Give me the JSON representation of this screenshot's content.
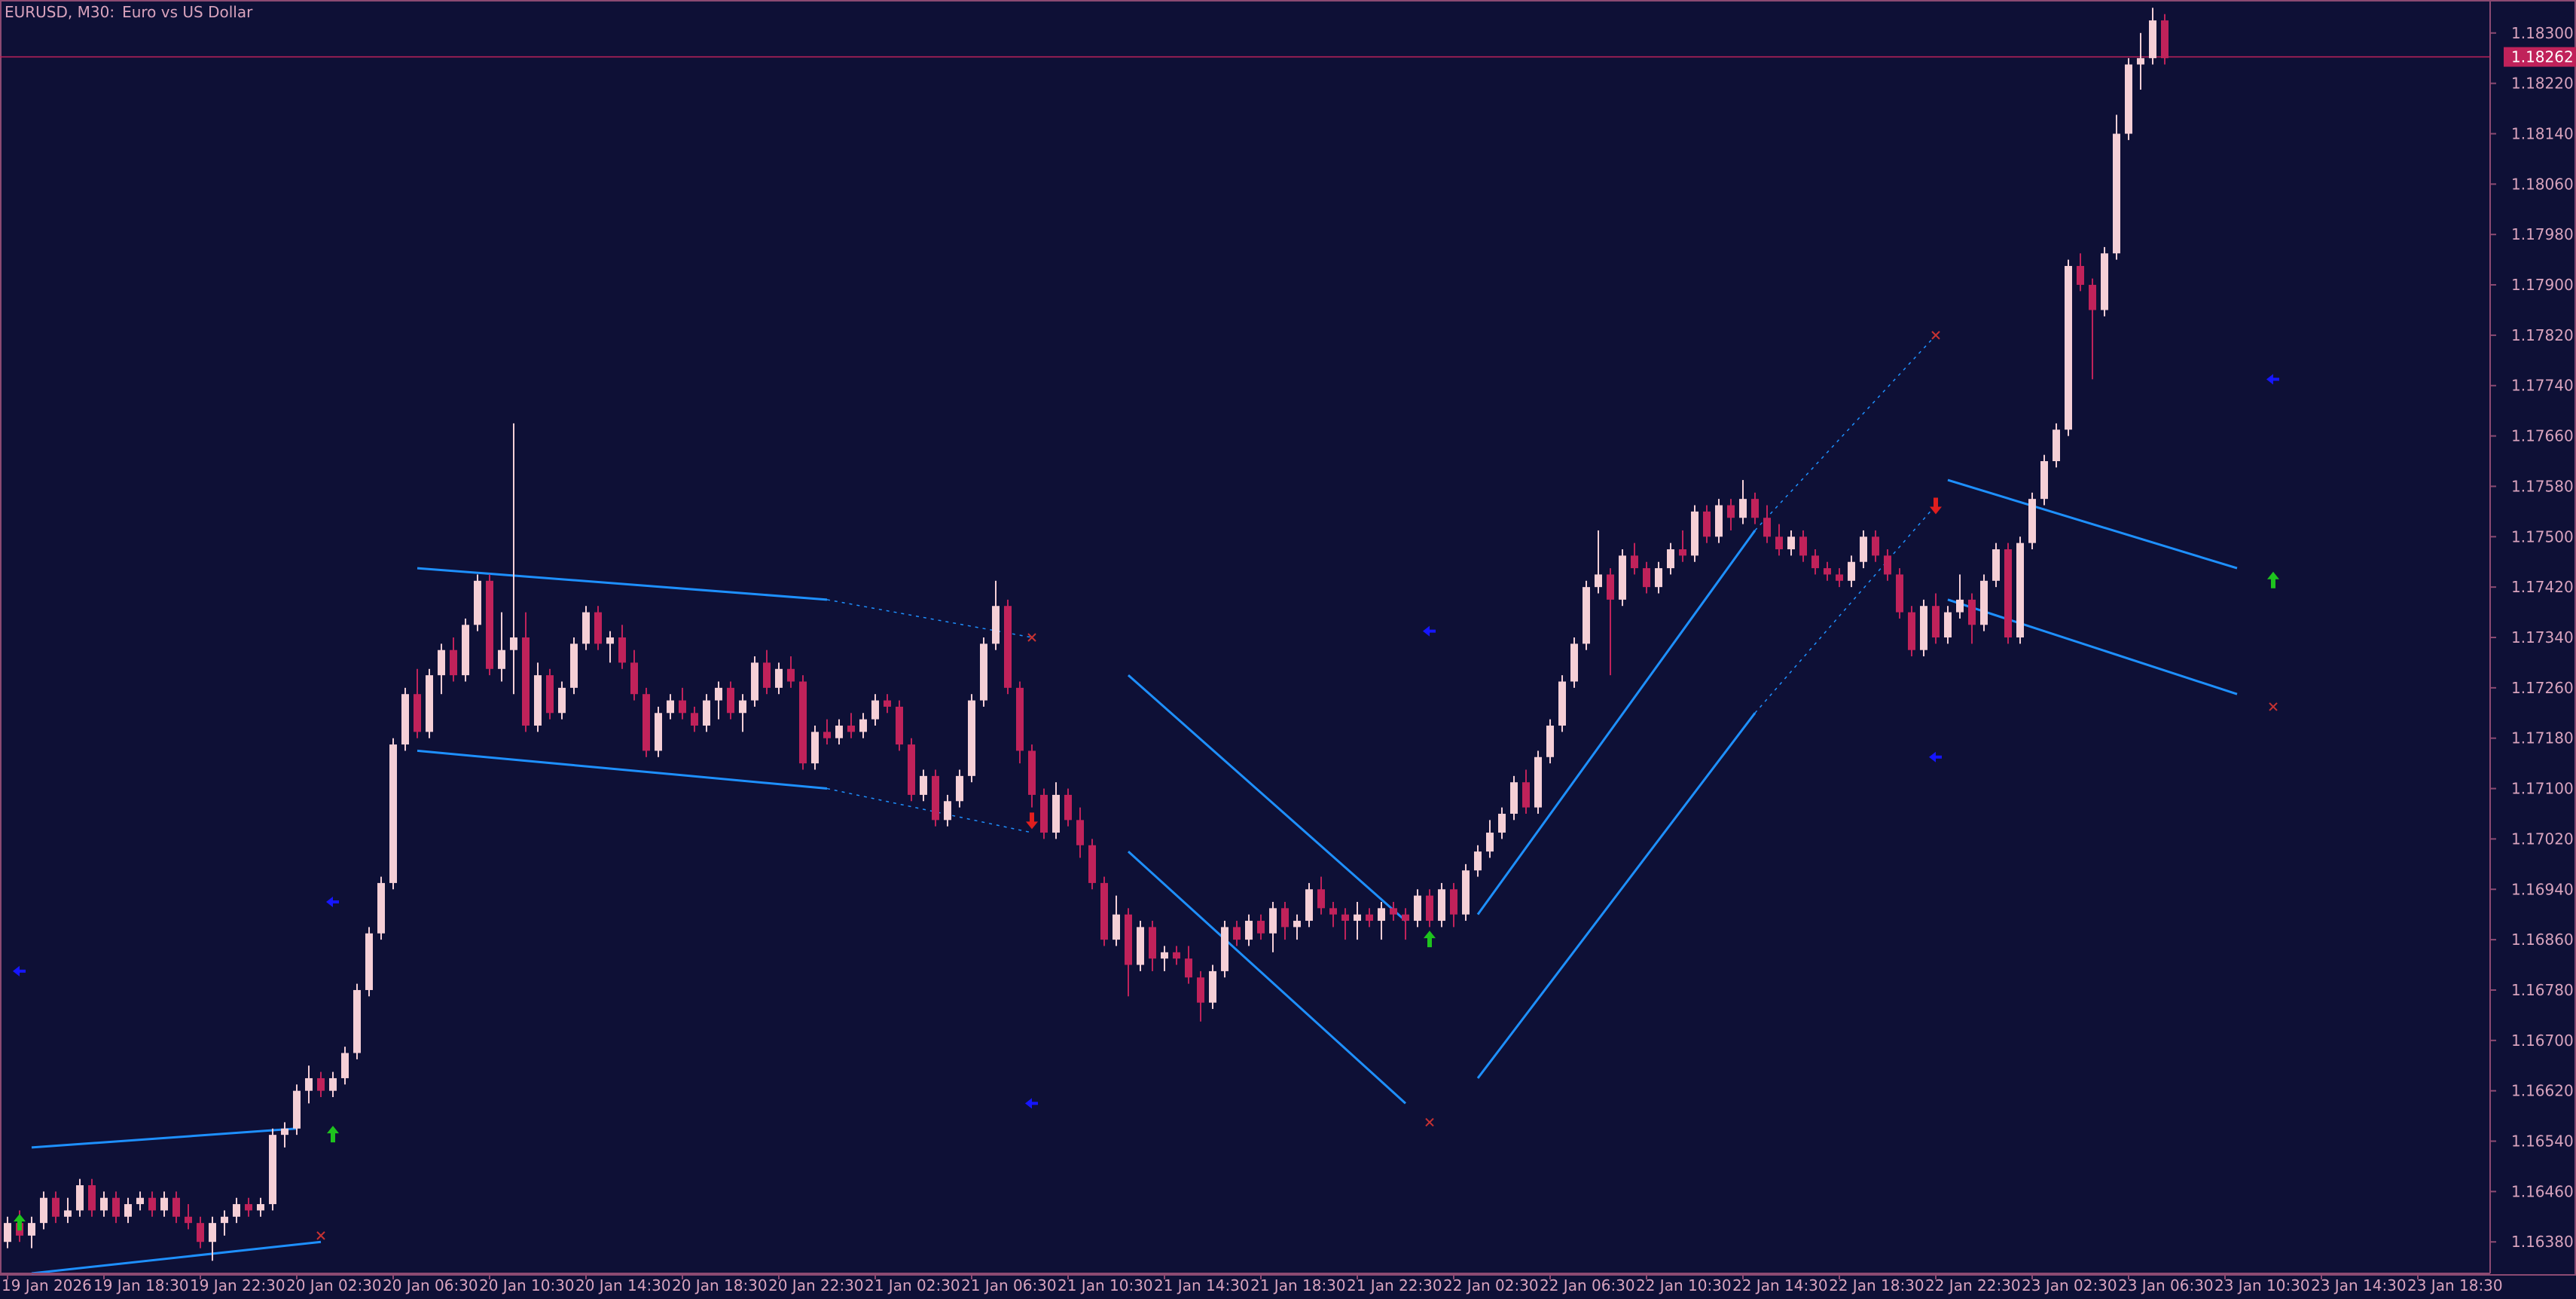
{
  "header": {
    "symbol": "EURUSD, M30:",
    "description": "Euro vs US Dollar"
  },
  "colors": {
    "background": "#0e1036",
    "frame": "#8c4a72",
    "text": "#d9a3bd",
    "bull_candle": "#f5cfd6",
    "bear_candle": "#c0225a",
    "channel_line": "#1e90ff",
    "arrow_up": "#1ec31e",
    "arrow_down": "#e01e1e",
    "marker_blue": "#1616ff",
    "x_marker": "#c83232",
    "price_line": "#c0225a"
  },
  "chart_data": {
    "type": "candlestick",
    "symbol": "EURUSD",
    "timeframe": "M30",
    "current_price": 1.18262,
    "current_price_label": "1.18262",
    "y_ticks": [
      "1.18300",
      "1.18220",
      "1.18140",
      "1.18060",
      "1.17980",
      "1.17900",
      "1.17820",
      "1.17740",
      "1.17660",
      "1.17580",
      "1.17500",
      "1.17420",
      "1.17340",
      "1.17260",
      "1.17180",
      "1.17100",
      "1.17020",
      "1.16940",
      "1.16860",
      "1.16780",
      "1.16700",
      "1.16620",
      "1.16540",
      "1.16460",
      "1.16380"
    ],
    "ylim": [
      1.1633,
      1.1835
    ],
    "x_ticks": [
      "19 Jan 2026",
      "19 Jan 18:30",
      "19 Jan 22:30",
      "20 Jan 02:30",
      "20 Jan 06:30",
      "20 Jan 10:30",
      "20 Jan 14:30",
      "20 Jan 18:30",
      "20 Jan 22:30",
      "21 Jan 02:30",
      "21 Jan 06:30",
      "21 Jan 10:30",
      "21 Jan 14:30",
      "21 Jan 18:30",
      "21 Jan 22:30",
      "22 Jan 02:30",
      "22 Jan 06:30",
      "22 Jan 10:30",
      "22 Jan 14:30",
      "22 Jan 18:30",
      "22 Jan 22:30",
      "23 Jan 02:30",
      "23 Jan 06:30",
      "23 Jan 10:30",
      "23 Jan 14:30",
      "23 Jan 18:30"
    ],
    "bars_per_tick": 8,
    "candles": [
      [
        1.1638,
        1.1642,
        1.1637,
        1.1641
      ],
      [
        1.1641,
        1.1643,
        1.1638,
        1.1639
      ],
      [
        1.1639,
        1.1642,
        1.1637,
        1.1641
      ],
      [
        1.1641,
        1.1646,
        1.164,
        1.1645
      ],
      [
        1.1645,
        1.1646,
        1.1641,
        1.1642
      ],
      [
        1.1642,
        1.1645,
        1.1641,
        1.1643
      ],
      [
        1.1643,
        1.1648,
        1.1642,
        1.1647
      ],
      [
        1.1647,
        1.1648,
        1.1642,
        1.1643
      ],
      [
        1.1643,
        1.1646,
        1.1642,
        1.1645
      ],
      [
        1.1645,
        1.1646,
        1.1641,
        1.1642
      ],
      [
        1.1642,
        1.1645,
        1.1641,
        1.1644
      ],
      [
        1.1644,
        1.1646,
        1.1643,
        1.1645
      ],
      [
        1.1645,
        1.1646,
        1.1642,
        1.1643
      ],
      [
        1.1643,
        1.1646,
        1.1642,
        1.1645
      ],
      [
        1.1645,
        1.1646,
        1.1641,
        1.1642
      ],
      [
        1.1642,
        1.1644,
        1.164,
        1.1641
      ],
      [
        1.1641,
        1.1642,
        1.1637,
        1.1638
      ],
      [
        1.1638,
        1.1642,
        1.1635,
        1.1641
      ],
      [
        1.1641,
        1.1643,
        1.1639,
        1.1642
      ],
      [
        1.1642,
        1.1645,
        1.1641,
        1.1644
      ],
      [
        1.1644,
        1.1645,
        1.1642,
        1.1643
      ],
      [
        1.1643,
        1.1645,
        1.1642,
        1.1644
      ],
      [
        1.1644,
        1.1656,
        1.1643,
        1.1655
      ],
      [
        1.1655,
        1.1657,
        1.1653,
        1.1656
      ],
      [
        1.1656,
        1.1663,
        1.1655,
        1.1662
      ],
      [
        1.1662,
        1.1666,
        1.166,
        1.1664
      ],
      [
        1.1664,
        1.1665,
        1.1661,
        1.1662
      ],
      [
        1.1662,
        1.1665,
        1.1661,
        1.1664
      ],
      [
        1.1664,
        1.1669,
        1.1663,
        1.1668
      ],
      [
        1.1668,
        1.1679,
        1.1667,
        1.1678
      ],
      [
        1.1678,
        1.1688,
        1.1677,
        1.1687
      ],
      [
        1.1687,
        1.1696,
        1.1686,
        1.1695
      ],
      [
        1.1695,
        1.1718,
        1.1694,
        1.1717
      ],
      [
        1.1717,
        1.1726,
        1.1716,
        1.1725
      ],
      [
        1.1725,
        1.1729,
        1.1718,
        1.1719
      ],
      [
        1.1719,
        1.1729,
        1.1718,
        1.1728
      ],
      [
        1.1728,
        1.1733,
        1.1725,
        1.1732
      ],
      [
        1.1732,
        1.1734,
        1.1727,
        1.1728
      ],
      [
        1.1728,
        1.1737,
        1.1727,
        1.1736
      ],
      [
        1.1736,
        1.1744,
        1.1735,
        1.1743
      ],
      [
        1.1743,
        1.1744,
        1.1728,
        1.1729
      ],
      [
        1.1729,
        1.1738,
        1.1727,
        1.1732
      ],
      [
        1.1732,
        1.1768,
        1.1725,
        1.1734
      ],
      [
        1.1734,
        1.1738,
        1.1719,
        1.172
      ],
      [
        1.172,
        1.173,
        1.1719,
        1.1728
      ],
      [
        1.1728,
        1.1729,
        1.1721,
        1.1722
      ],
      [
        1.1722,
        1.1727,
        1.1721,
        1.1726
      ],
      [
        1.1726,
        1.1734,
        1.1725,
        1.1733
      ],
      [
        1.1733,
        1.1739,
        1.1732,
        1.1738
      ],
      [
        1.1738,
        1.1739,
        1.1732,
        1.1733
      ],
      [
        1.1733,
        1.1735,
        1.173,
        1.1734
      ],
      [
        1.1734,
        1.1736,
        1.1729,
        1.173
      ],
      [
        1.173,
        1.1732,
        1.1724,
        1.1725
      ],
      [
        1.1725,
        1.1726,
        1.1715,
        1.1716
      ],
      [
        1.1716,
        1.1723,
        1.1715,
        1.1722
      ],
      [
        1.1722,
        1.1725,
        1.1721,
        1.1724
      ],
      [
        1.1724,
        1.1726,
        1.1721,
        1.1722
      ],
      [
        1.1722,
        1.1723,
        1.1719,
        1.172
      ],
      [
        1.172,
        1.1725,
        1.1719,
        1.1724
      ],
      [
        1.1724,
        1.1727,
        1.1721,
        1.1726
      ],
      [
        1.1726,
        1.1727,
        1.1721,
        1.1722
      ],
      [
        1.1722,
        1.1725,
        1.1719,
        1.1724
      ],
      [
        1.1724,
        1.1731,
        1.1723,
        1.173
      ],
      [
        1.173,
        1.1732,
        1.1725,
        1.1726
      ],
      [
        1.1726,
        1.173,
        1.1725,
        1.1729
      ],
      [
        1.1729,
        1.1731,
        1.1726,
        1.1727
      ],
      [
        1.1727,
        1.1728,
        1.1713,
        1.1714
      ],
      [
        1.1714,
        1.172,
        1.1713,
        1.1719
      ],
      [
        1.1719,
        1.1721,
        1.1717,
        1.1718
      ],
      [
        1.1718,
        1.1721,
        1.1717,
        1.172
      ],
      [
        1.172,
        1.1722,
        1.1718,
        1.1719
      ],
      [
        1.1719,
        1.1722,
        1.1718,
        1.1721
      ],
      [
        1.1721,
        1.1725,
        1.172,
        1.1724
      ],
      [
        1.1724,
        1.1725,
        1.1722,
        1.1723
      ],
      [
        1.1723,
        1.1724,
        1.1716,
        1.1717
      ],
      [
        1.1717,
        1.1718,
        1.1708,
        1.1709
      ],
      [
        1.1709,
        1.1713,
        1.1708,
        1.1712
      ],
      [
        1.1712,
        1.1713,
        1.1704,
        1.1705
      ],
      [
        1.1705,
        1.1709,
        1.1704,
        1.1708
      ],
      [
        1.1708,
        1.1713,
        1.1707,
        1.1712
      ],
      [
        1.1712,
        1.1725,
        1.1711,
        1.1724
      ],
      [
        1.1724,
        1.1734,
        1.1723,
        1.1733
      ],
      [
        1.1733,
        1.1743,
        1.1732,
        1.1739
      ],
      [
        1.1739,
        1.174,
        1.1725,
        1.1726
      ],
      [
        1.1726,
        1.1727,
        1.1714,
        1.1716
      ],
      [
        1.1716,
        1.1717,
        1.1707,
        1.1709
      ],
      [
        1.1709,
        1.171,
        1.1702,
        1.1703
      ],
      [
        1.1703,
        1.1711,
        1.1702,
        1.1709
      ],
      [
        1.1709,
        1.171,
        1.1704,
        1.1705
      ],
      [
        1.1705,
        1.1707,
        1.1699,
        1.1701
      ],
      [
        1.1701,
        1.1702,
        1.1694,
        1.1695
      ],
      [
        1.1695,
        1.1696,
        1.1685,
        1.1686
      ],
      [
        1.1686,
        1.1693,
        1.1685,
        1.169
      ],
      [
        1.169,
        1.1691,
        1.1677,
        1.1682
      ],
      [
        1.1682,
        1.1689,
        1.1681,
        1.1688
      ],
      [
        1.1688,
        1.1689,
        1.1681,
        1.1683
      ],
      [
        1.1683,
        1.1685,
        1.1681,
        1.1684
      ],
      [
        1.1684,
        1.1685,
        1.1682,
        1.1683
      ],
      [
        1.1683,
        1.1685,
        1.1679,
        1.168
      ],
      [
        1.168,
        1.1681,
        1.1673,
        1.1676
      ],
      [
        1.1676,
        1.1682,
        1.1675,
        1.1681
      ],
      [
        1.1681,
        1.1689,
        1.168,
        1.1688
      ],
      [
        1.1688,
        1.1689,
        1.1685,
        1.1686
      ],
      [
        1.1686,
        1.169,
        1.1685,
        1.1689
      ],
      [
        1.1689,
        1.169,
        1.1686,
        1.1687
      ],
      [
        1.1687,
        1.1692,
        1.1684,
        1.1691
      ],
      [
        1.1691,
        1.1692,
        1.1686,
        1.1688
      ],
      [
        1.1688,
        1.169,
        1.1686,
        1.1689
      ],
      [
        1.1689,
        1.1695,
        1.1688,
        1.1694
      ],
      [
        1.1694,
        1.1696,
        1.169,
        1.1691
      ],
      [
        1.1691,
        1.1692,
        1.1688,
        1.169
      ],
      [
        1.169,
        1.1691,
        1.1686,
        1.1689
      ],
      [
        1.1689,
        1.1692,
        1.1686,
        1.169
      ],
      [
        1.169,
        1.1691,
        1.1688,
        1.1689
      ],
      [
        1.1689,
        1.1692,
        1.1686,
        1.1691
      ],
      [
        1.1691,
        1.1692,
        1.1689,
        1.169
      ],
      [
        1.169,
        1.1691,
        1.1686,
        1.1689
      ],
      [
        1.1689,
        1.1694,
        1.1688,
        1.1693
      ],
      [
        1.1693,
        1.1694,
        1.1688,
        1.1689
      ],
      [
        1.1689,
        1.1695,
        1.1688,
        1.1694
      ],
      [
        1.1694,
        1.1695,
        1.1688,
        1.169
      ],
      [
        1.169,
        1.1698,
        1.1689,
        1.1697
      ],
      [
        1.1697,
        1.1701,
        1.1696,
        1.17
      ],
      [
        1.17,
        1.1705,
        1.1699,
        1.1703
      ],
      [
        1.1703,
        1.1707,
        1.1702,
        1.1706
      ],
      [
        1.1706,
        1.1712,
        1.1705,
        1.1711
      ],
      [
        1.1711,
        1.1713,
        1.1706,
        1.1707
      ],
      [
        1.1707,
        1.1716,
        1.1706,
        1.1715
      ],
      [
        1.1715,
        1.1721,
        1.1714,
        1.172
      ],
      [
        1.172,
        1.1728,
        1.1719,
        1.1727
      ],
      [
        1.1727,
        1.1734,
        1.1726,
        1.1733
      ],
      [
        1.1733,
        1.1743,
        1.1732,
        1.1742
      ],
      [
        1.1742,
        1.1751,
        1.1741,
        1.1744
      ],
      [
        1.1744,
        1.1745,
        1.1728,
        1.174
      ],
      [
        1.174,
        1.1748,
        1.1739,
        1.1747
      ],
      [
        1.1747,
        1.1749,
        1.1744,
        1.1745
      ],
      [
        1.1745,
        1.1746,
        1.1741,
        1.1742
      ],
      [
        1.1742,
        1.1746,
        1.1741,
        1.1745
      ],
      [
        1.1745,
        1.1749,
        1.1744,
        1.1748
      ],
      [
        1.1748,
        1.1751,
        1.1746,
        1.1747
      ],
      [
        1.1747,
        1.1755,
        1.1746,
        1.1754
      ],
      [
        1.1754,
        1.1755,
        1.1749,
        1.175
      ],
      [
        1.175,
        1.1756,
        1.1749,
        1.1755
      ],
      [
        1.1755,
        1.1756,
        1.1751,
        1.1753
      ],
      [
        1.1753,
        1.1759,
        1.1752,
        1.1756
      ],
      [
        1.1756,
        1.1757,
        1.1752,
        1.1753
      ],
      [
        1.1753,
        1.1755,
        1.1749,
        1.175
      ],
      [
        1.175,
        1.1752,
        1.1747,
        1.1748
      ],
      [
        1.1748,
        1.1751,
        1.1747,
        1.175
      ],
      [
        1.175,
        1.1751,
        1.1746,
        1.1747
      ],
      [
        1.1747,
        1.1748,
        1.1744,
        1.1745
      ],
      [
        1.1745,
        1.1746,
        1.1743,
        1.1744
      ],
      [
        1.1744,
        1.1745,
        1.1742,
        1.1743
      ],
      [
        1.1743,
        1.1747,
        1.1742,
        1.1746
      ],
      [
        1.1746,
        1.1751,
        1.1745,
        1.175
      ],
      [
        1.175,
        1.1751,
        1.1746,
        1.1747
      ],
      [
        1.1747,
        1.1748,
        1.1743,
        1.1744
      ],
      [
        1.1744,
        1.1745,
        1.1737,
        1.1738
      ],
      [
        1.1738,
        1.1739,
        1.1731,
        1.1732
      ],
      [
        1.1732,
        1.174,
        1.1731,
        1.1739
      ],
      [
        1.1739,
        1.1741,
        1.1733,
        1.1734
      ],
      [
        1.1734,
        1.1739,
        1.1733,
        1.1738
      ],
      [
        1.1738,
        1.1744,
        1.1737,
        1.174
      ],
      [
        1.174,
        1.1741,
        1.1733,
        1.1736
      ],
      [
        1.1736,
        1.1744,
        1.1735,
        1.1743
      ],
      [
        1.1743,
        1.1749,
        1.1742,
        1.1748
      ],
      [
        1.1748,
        1.1749,
        1.1733,
        1.1734
      ],
      [
        1.1734,
        1.175,
        1.1733,
        1.1749
      ],
      [
        1.1749,
        1.1757,
        1.1748,
        1.1756
      ],
      [
        1.1756,
        1.1763,
        1.1755,
        1.1762
      ],
      [
        1.1762,
        1.1768,
        1.1761,
        1.1767
      ],
      [
        1.1767,
        1.1794,
        1.1766,
        1.1793
      ],
      [
        1.1793,
        1.1795,
        1.1789,
        1.179
      ],
      [
        1.179,
        1.1791,
        1.1775,
        1.1786
      ],
      [
        1.1786,
        1.1796,
        1.1785,
        1.1795
      ],
      [
        1.1795,
        1.1817,
        1.1794,
        1.1814
      ],
      [
        1.1814,
        1.1826,
        1.1813,
        1.1825
      ],
      [
        1.1825,
        1.183,
        1.1821,
        1.1826
      ],
      [
        1.1826,
        1.1834,
        1.1825,
        1.1832
      ],
      [
        1.1832,
        1.1833,
        1.1825,
        1.1826
      ]
    ]
  },
  "annotations": {
    "channels": [
      {
        "id": "channel-1",
        "upper": [
          [
            2,
            1.1653
          ],
          [
            24,
            1.1656
          ]
        ],
        "lower": [
          [
            2,
            1.1633
          ],
          [
            26,
            1.1638
          ]
        ],
        "end_marker": [
          26,
          1.1639
        ]
      },
      {
        "id": "channel-2",
        "upper": [
          [
            34,
            1.1745
          ],
          [
            68,
            1.174
          ],
          [
            85,
            1.1734
          ]
        ],
        "lower": [
          [
            34,
            1.1716
          ],
          [
            68,
            1.171
          ],
          [
            85,
            1.1703
          ]
        ],
        "end_marker": [
          85,
          1.1734
        ]
      },
      {
        "id": "channel-3",
        "upper": [
          [
            93,
            1.1728
          ],
          [
            116,
            1.1689
          ]
        ],
        "lower": [
          [
            93,
            1.17
          ],
          [
            116,
            1.166
          ]
        ],
        "end_marker": [
          118,
          1.1657
        ]
      },
      {
        "id": "channel-4",
        "upper": [
          [
            122,
            1.169
          ],
          [
            145,
            1.1751
          ],
          [
            160,
            1.1782
          ]
        ],
        "lower": [
          [
            122,
            1.1664
          ],
          [
            145,
            1.1722
          ],
          [
            160,
            1.1755
          ]
        ],
        "end_marker": [
          160,
          1.1782
        ]
      },
      {
        "id": "channel-5",
        "upper": [
          [
            161,
            1.1759
          ],
          [
            185,
            1.1745
          ]
        ],
        "lower": [
          [
            161,
            1.174
          ],
          [
            185,
            1.1725
          ]
        ],
        "end_marker": [
          188,
          1.1723
        ]
      }
    ],
    "up_arrows": [
      [
        1,
        1.1641
      ],
      [
        27,
        1.1655
      ],
      [
        118,
        1.1686
      ],
      [
        188,
        1.1743
      ]
    ],
    "down_arrows": [
      [
        85,
        1.1705
      ],
      [
        160,
        1.1755
      ]
    ],
    "blue_markers": [
      [
        1,
        1.1681
      ],
      [
        27,
        1.1692
      ],
      [
        85,
        1.166
      ],
      [
        118,
        1.1735
      ],
      [
        160,
        1.1715
      ],
      [
        188,
        1.1775
      ]
    ]
  }
}
